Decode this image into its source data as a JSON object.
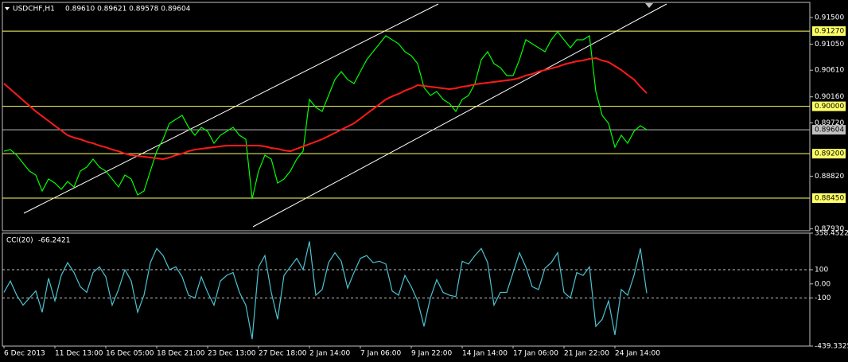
{
  "chart_data": [
    {
      "type": "line",
      "title": "USDCHF,H1",
      "subtitle": "0.89610 0.89621 0.89578 0.89604",
      "categories": [
        "6 Dec 2013",
        null,
        null,
        null,
        null,
        null,
        null,
        null,
        "11 Dec 13:00",
        null,
        null,
        null,
        null,
        null,
        null,
        null,
        "16 Dec 05:00",
        null,
        null,
        null,
        null,
        null,
        null,
        null,
        "18 Dec 21:00",
        null,
        null,
        null,
        null,
        null,
        null,
        null,
        "23 Dec 13:00",
        null,
        null,
        null,
        null,
        null,
        null,
        null,
        "27 Dec 18:00",
        null,
        null,
        null,
        null,
        null,
        null,
        null,
        "2 Jan 14:00",
        null,
        null,
        null,
        null,
        null,
        null,
        null,
        "7 Jan 06:00",
        null,
        null,
        null,
        null,
        null,
        null,
        null,
        "9 Jan 22:00",
        null,
        null,
        null,
        null,
        null,
        null,
        null,
        "14 Jan 14:00",
        null,
        null,
        null,
        null,
        null,
        null,
        null,
        "17 Jan 06:00",
        null,
        null,
        null,
        null,
        null,
        null,
        null,
        "21 Jan 22:00",
        null,
        null,
        null,
        null,
        null,
        null,
        null,
        "24 Jan 14:00",
        null,
        null,
        null,
        null,
        null
      ],
      "series": [
        {
          "color": "#00ff00",
          "values": [
            0.89242,
            0.89269,
            0.89175,
            0.8904,
            0.88906,
            0.88839,
            0.8857,
            0.88772,
            0.88704,
            0.88597,
            0.88731,
            0.88637,
            0.88906,
            0.88973,
            0.89108,
            0.88973,
            0.88906,
            0.88772,
            0.88637,
            0.88839,
            0.88772,
            0.88503,
            0.8857,
            0.88906,
            0.89242,
            0.89444,
            0.89712,
            0.8978,
            0.89847,
            0.89645,
            0.89511,
            0.89645,
            0.89578,
            0.89376,
            0.89511,
            0.89578,
            0.89645,
            0.89511,
            0.89444,
            0.88436,
            0.88906,
            0.89175,
            0.89108,
            0.88704,
            0.88772,
            0.88906,
            0.89108,
            0.89242,
            0.90116,
            0.89981,
            0.89914,
            0.90183,
            0.90452,
            0.90586,
            0.90452,
            0.90384,
            0.90586,
            0.90788,
            0.90922,
            0.91056,
            0.91191,
            0.91124,
            0.91056,
            0.90922,
            0.90855,
            0.9072,
            0.90317,
            0.90183,
            0.9025,
            0.90116,
            0.90048,
            0.89914,
            0.90116,
            0.90183,
            0.90384,
            0.90788,
            0.90922,
            0.9072,
            0.90653,
            0.90519,
            0.90519,
            0.90788,
            0.91124,
            0.91056,
            0.90989,
            0.90922,
            0.91124,
            0.91258,
            0.91124,
            0.90989,
            0.91124,
            0.91124,
            0.91191,
            0.9025,
            0.89847,
            0.89712,
            0.89309,
            0.89511,
            0.89376,
            0.89578,
            0.89672,
            0.89604
          ]
        },
        {
          "color": "#ff1a1a",
          "values": [
            0.90384,
            0.9029,
            0.90196,
            0.90102,
            0.90008,
            0.89914,
            0.89833,
            0.89753,
            0.89672,
            0.89592,
            0.89511,
            0.89471,
            0.89444,
            0.89403,
            0.89376,
            0.89336,
            0.89309,
            0.89269,
            0.89242,
            0.89202,
            0.89175,
            0.89161,
            0.89148,
            0.89135,
            0.89121,
            0.89108,
            0.89135,
            0.89175,
            0.89202,
            0.89242,
            0.89269,
            0.89282,
            0.89296,
            0.89309,
            0.89323,
            0.89336,
            0.89336,
            0.89336,
            0.89336,
            0.89336,
            0.89336,
            0.89323,
            0.89296,
            0.89282,
            0.89256,
            0.89242,
            0.89282,
            0.89323,
            0.89363,
            0.89403,
            0.89444,
            0.89497,
            0.89551,
            0.89605,
            0.89659,
            0.89712,
            0.89793,
            0.89874,
            0.89954,
            0.90035,
            0.90116,
            0.90169,
            0.9021,
            0.90264,
            0.90304,
            0.90358,
            0.90344,
            0.90331,
            0.90317,
            0.90304,
            0.9029,
            0.90304,
            0.90331,
            0.90344,
            0.90371,
            0.90384,
            0.90398,
            0.90411,
            0.90425,
            0.90438,
            0.90452,
            0.90479,
            0.90519,
            0.90546,
            0.90586,
            0.90613,
            0.9064,
            0.90667,
            0.90707,
            0.90734,
            0.90761,
            0.90774,
            0.90801,
            0.90815,
            0.90774,
            0.90747,
            0.9068,
            0.90613,
            0.90532,
            0.90452,
            0.90331,
            0.90223
          ]
        }
      ],
      "ylim": [
        0.87899,
        0.91755
      ],
      "yticks": [
        {
          "value": 0.915,
          "label": "0.91500"
        },
        {
          "value": 0.9105,
          "label": "0.91050"
        },
        {
          "value": 0.9061,
          "label": "0.90610"
        },
        {
          "value": 0.9016,
          "label": "0.90160"
        },
        {
          "value": 0.8972,
          "label": "0.89720"
        },
        {
          "value": 0.8882,
          "label": "0.88820"
        },
        {
          "value": 0.8793,
          "label": "0.87930"
        }
      ],
      "levels": [
        {
          "value": 0.9127,
          "label": "0.91270",
          "color": "#ffff66"
        },
        {
          "value": 0.9,
          "label": "0.90000",
          "color": "#ffff66"
        },
        {
          "value": 0.89604,
          "label": "0.89604",
          "color": "#c0c0c0"
        },
        {
          "value": 0.892,
          "label": "0.89200",
          "color": "#ffff66"
        },
        {
          "value": 0.8845,
          "label": "0.88450",
          "color": "#ffff66"
        }
      ]
    },
    {
      "type": "line",
      "title": "CCI(20)",
      "subtitle": -66.2421,
      "series": [
        {
          "color": "#4cc3d0",
          "values": [
            -60,
            20,
            -80,
            -150,
            -100,
            -50,
            -200,
            40,
            -120,
            60,
            150,
            80,
            -20,
            -60,
            80,
            120,
            50,
            -150,
            -40,
            100,
            20,
            -200,
            -80,
            150,
            250,
            200,
            100,
            120,
            50,
            -80,
            -100,
            50,
            -60,
            -150,
            20,
            60,
            80,
            -60,
            -150,
            -390,
            120,
            200,
            -60,
            -250,
            60,
            120,
            180,
            100,
            300,
            -80,
            -40,
            150,
            220,
            160,
            -30,
            80,
            180,
            200,
            150,
            160,
            140,
            -50,
            -80,
            60,
            -20,
            -120,
            -300,
            -100,
            30,
            -60,
            -80,
            -90,
            160,
            140,
            200,
            250,
            150,
            -150,
            -60,
            -60,
            80,
            220,
            120,
            -20,
            -40,
            110,
            150,
            220,
            -60,
            -100,
            80,
            60,
            120,
            -300,
            -250,
            -120,
            -360,
            -40,
            -80,
            60,
            250,
            -66.2421
          ]
        }
      ],
      "ylim": [
        -439.3325,
        358.4522
      ],
      "yticks": [
        358.4522,
        100,
        {
          "value": 0,
          "label": "0.00"
        },
        -100,
        -439.3325
      ],
      "levels": [
        100,
        -100
      ]
    }
  ]
}
